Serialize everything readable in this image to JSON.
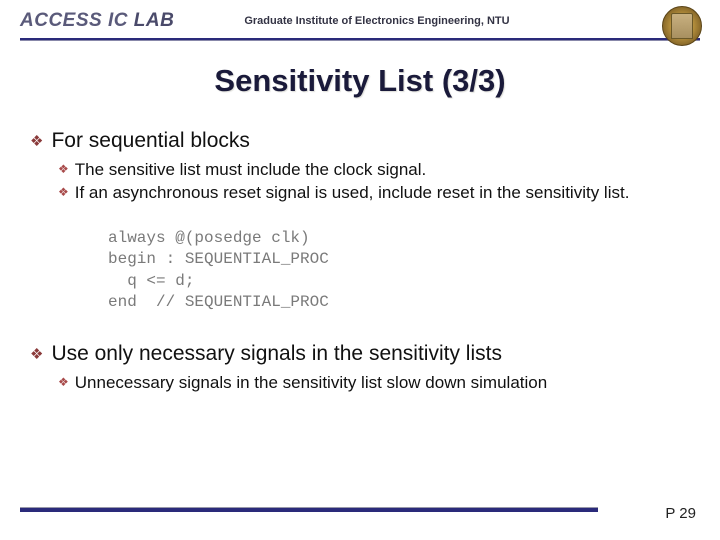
{
  "header": {
    "lab": "ACCESS IC",
    "lab_suffix": "LAB",
    "institute": "Graduate Institute of Electronics Engineering, NTU"
  },
  "title": "Sensitivity List (3/3)",
  "bullets": {
    "b1": "For sequential blocks",
    "b1_sub1": "The sensitive list must include the clock signal.",
    "b1_sub2": "If an asynchronous reset signal is used, include reset in the sensitivity list.",
    "b2": "Use only necessary signals in the sensitivity lists",
    "b2_sub1": "Unnecessary signals in the sensitivity list slow down simulation"
  },
  "code": "always @(posedge clk)\nbegin : SEQUENTIAL_PROC\n  q <= d;\nend  // SEQUENTIAL_PROC",
  "page": "P 29",
  "colors": {
    "accent": "#2a2a7a",
    "diamond": "#8a3a3a"
  }
}
